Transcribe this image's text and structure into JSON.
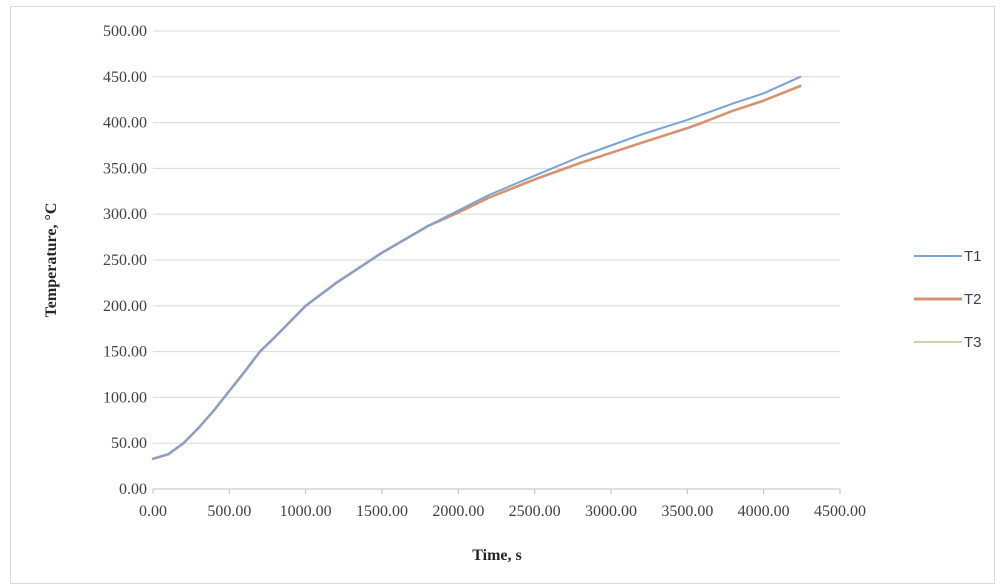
{
  "chart_data": {
    "type": "line",
    "xlabel": "Time, s",
    "ylabel": "Temperature, °C",
    "xlim": [
      0,
      4500
    ],
    "ylim": [
      0,
      500
    ],
    "x_ticks": [
      0,
      500,
      1000,
      1500,
      2000,
      2500,
      3000,
      3500,
      4000,
      4500
    ],
    "x_tick_labels": [
      "0.00",
      "500.00",
      "1000.00",
      "1500.00",
      "2000.00",
      "2500.00",
      "3000.00",
      "3500.00",
      "4000.00",
      "4500.00"
    ],
    "y_ticks": [
      0,
      50,
      100,
      150,
      200,
      250,
      300,
      350,
      400,
      450,
      500
    ],
    "y_tick_labels": [
      "0.00",
      "50.00",
      "100.00",
      "150.00",
      "200.00",
      "250.00",
      "300.00",
      "350.00",
      "400.00",
      "450.00",
      "500.00"
    ],
    "grid": "horizontal",
    "legend_position": "right",
    "series": [
      {
        "name": "T1",
        "color": "#7ba3d3",
        "x": [
          0,
          100,
          200,
          300,
          400,
          500,
          600,
          700,
          800,
          1000,
          1200,
          1500,
          1800,
          2000,
          2200,
          2500,
          2800,
          3000,
          3200,
          3500,
          3600,
          3800,
          4000,
          4240
        ],
        "y": [
          33,
          38,
          50,
          67,
          86,
          107,
          128,
          150,
          166,
          200,
          225,
          258,
          287,
          304,
          321,
          342,
          363,
          375,
          387,
          403,
          409,
          421,
          432,
          450
        ]
      },
      {
        "name": "T2",
        "color": "#d9926e",
        "x": [
          0,
          100,
          200,
          300,
          400,
          500,
          600,
          700,
          800,
          1000,
          1200,
          1500,
          1800,
          2000,
          2200,
          2500,
          2800,
          3000,
          3200,
          3500,
          3600,
          3800,
          4000,
          4240
        ],
        "y": [
          33,
          38,
          50,
          67,
          86,
          107,
          128,
          150,
          166,
          200,
          225,
          258,
          287,
          302,
          318,
          338,
          356,
          367,
          378,
          394,
          400,
          413,
          424,
          440
        ]
      },
      {
        "name": "T3",
        "color": "#b5c98a",
        "x": [
          0,
          100,
          200,
          300,
          400,
          500,
          600,
          700,
          800,
          1000,
          1200,
          1500,
          1800,
          2000,
          2200,
          2500,
          2800,
          3000,
          3200,
          3500,
          3600,
          3800,
          4000,
          4240
        ],
        "y": [
          33,
          38,
          50,
          67,
          86,
          107,
          128,
          150,
          166,
          200,
          225,
          258,
          287,
          302,
          318,
          338,
          356,
          367,
          378,
          394,
          400,
          413,
          424,
          440
        ]
      }
    ]
  }
}
